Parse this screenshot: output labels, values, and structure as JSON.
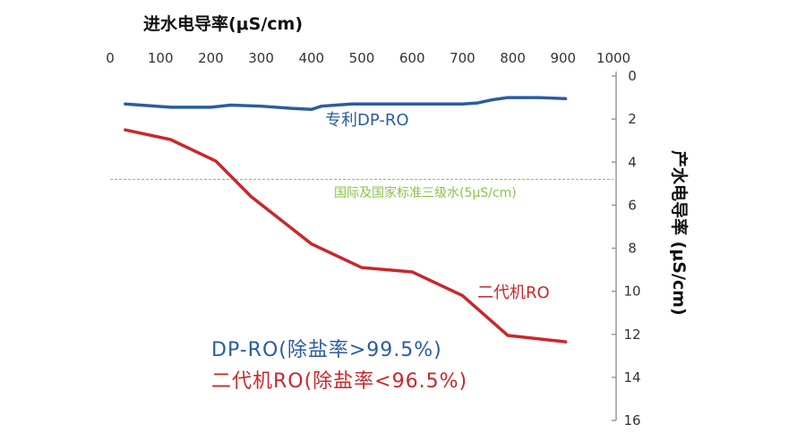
{
  "chart_data": {
    "type": "line",
    "xlabel": "进水电导率(μS/cm)",
    "ylabel": "产水电导率 (μS/cm)",
    "xlim": [
      0,
      1000
    ],
    "ylim": [
      0,
      16
    ],
    "y_inverted": true,
    "x_axis_position": "top",
    "y_axis_position": "right",
    "x_ticks": [
      "0",
      "100",
      "200",
      "300",
      "400",
      "500",
      "600",
      "700",
      "800",
      "900",
      "1000"
    ],
    "y_ticks": [
      "0",
      "2",
      "4",
      "6",
      "8",
      "10",
      "12",
      "14",
      "16"
    ],
    "grid": false,
    "series": [
      {
        "name": "专利DP-RO",
        "color": "#2a5d9f",
        "x": [
          30,
          120,
          200,
          240,
          300,
          360,
          400,
          420,
          480,
          550,
          600,
          700,
          730,
          760,
          790,
          850,
          905
        ],
        "y": [
          1.3,
          1.45,
          1.45,
          1.35,
          1.4,
          1.5,
          1.55,
          1.4,
          1.3,
          1.3,
          1.3,
          1.3,
          1.25,
          1.1,
          1.0,
          1.0,
          1.05
        ]
      },
      {
        "name": "二代机RO",
        "color": "#c8282b",
        "x": [
          30,
          120,
          210,
          280,
          400,
          500,
          600,
          700,
          790,
          905
        ],
        "y": [
          2.5,
          2.95,
          3.95,
          5.6,
          7.8,
          8.9,
          9.1,
          10.2,
          12.05,
          12.35
        ]
      }
    ],
    "reference_line": {
      "y": 4.8,
      "label": "国际及国家标准三级水(5μS/cm)",
      "color": "#8bc34a"
    },
    "legend_lines": [
      {
        "text": "DP-RO(除盐率>99.5%)",
        "color": "#2a5d9f"
      },
      {
        "text": "二代机RO(除盐率<96.5%)",
        "color": "#c8282b"
      }
    ]
  }
}
